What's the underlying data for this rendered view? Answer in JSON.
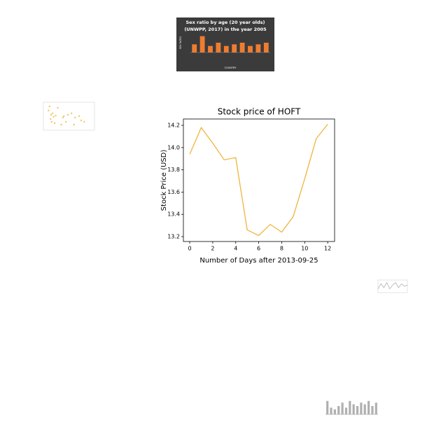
{
  "chart_data": [
    {
      "type": "bar",
      "title": [
        "Sex ratio by age (20 year olds)",
        "(UNWPP, 2017) in the year 2005"
      ],
      "x_label": "COUNTRY",
      "y_label": "SEX RATIO",
      "categories": [
        null,
        null,
        null,
        null,
        null,
        null,
        null,
        null,
        null,
        null
      ],
      "values": [
        103,
        108,
        102,
        104,
        102,
        103,
        104,
        102,
        103,
        104
      ],
      "color": "#ed7d31",
      "ylim": [
        98,
        110
      ],
      "background": "#3b3b3b"
    },
    {
      "type": "scatter",
      "color": "#f2c66d",
      "x": [
        10,
        12,
        14,
        15,
        16,
        18,
        20,
        22,
        24,
        28,
        35,
        38,
        40,
        44,
        48,
        55,
        60,
        62,
        70,
        74,
        80
      ],
      "values": [
        70,
        85,
        40,
        55,
        30,
        60,
        48,
        25,
        52,
        80,
        20,
        45,
        50,
        30,
        55,
        60,
        20,
        45,
        50,
        35,
        30
      ],
      "xlim": [
        0,
        100
      ],
      "ylim": [
        0,
        100
      ]
    },
    {
      "type": "line",
      "color": "#999999",
      "x": [
        0,
        2,
        4,
        6,
        8,
        10,
        12,
        14,
        16,
        18,
        20
      ],
      "values": [
        3,
        7,
        4,
        8,
        3,
        6,
        8,
        4,
        7,
        5,
        6
      ],
      "xlim": [
        0,
        20
      ],
      "ylim": [
        0,
        10
      ]
    },
    {
      "type": "bar",
      "color": "#b0b0b0",
      "categories": [
        null,
        null,
        null,
        null,
        null,
        null,
        null,
        null,
        null,
        null,
        null,
        null,
        null,
        null
      ],
      "values": [
        8,
        4,
        3,
        5,
        7,
        4,
        8,
        6,
        5,
        7,
        6,
        8,
        5,
        7
      ],
      "ylim": [
        0,
        10
      ]
    },
    {
      "type": "line",
      "title": "Stock price of HOFT",
      "x_label": "Number of Days after 2013-09-25",
      "y_label": "Stock Price (USD)",
      "color": "#f0b43c",
      "x": [
        0,
        1,
        2,
        3,
        4,
        5,
        6,
        7,
        8,
        9,
        10,
        11,
        12
      ],
      "values": [
        13.94,
        14.18,
        14.04,
        13.89,
        13.91,
        13.26,
        13.21,
        13.31,
        13.24,
        13.38,
        13.72,
        14.08,
        14.21
      ],
      "xlim": [
        -0.55,
        12.6
      ],
      "ylim": [
        13.156,
        14.257
      ],
      "xticks": [
        0,
        2,
        4,
        6,
        8,
        10,
        12
      ],
      "yticks": [
        13.2,
        13.4,
        13.6,
        13.8,
        {
          "value": 14,
          "label": "14.0"
        },
        14.2
      ]
    }
  ]
}
